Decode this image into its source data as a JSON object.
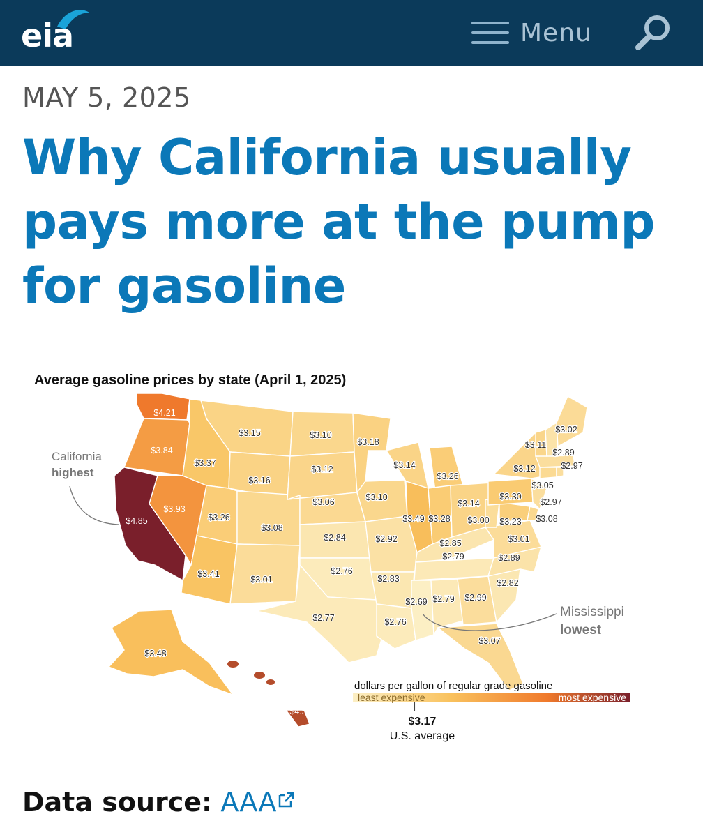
{
  "header": {
    "logo_text": "eia",
    "menu_label": "Menu",
    "search_icon": "search-icon",
    "menu_icon": "hamburger-icon"
  },
  "article": {
    "date": "MAY 5, 2025",
    "title": "Why California usually pays more at the pump for gasoline",
    "source_label": "Data source:",
    "source_link": "AAA",
    "external_icon": "external-link-icon"
  },
  "map": {
    "title": "Average gasoline prices by state (April 1, 2025)",
    "callout_high": {
      "line1": "California",
      "line2": "highest"
    },
    "callout_low": {
      "line1": "Mississippi",
      "line2": "lowest"
    },
    "legend": {
      "caption": "dollars per gallon of regular grade gasoline",
      "low_label": "least expensive",
      "high_label": "most expensive",
      "avg_value": "$3.17",
      "avg_label": "U.S. average",
      "min": 2.69,
      "max": 4.85,
      "us_average": 3.17
    },
    "colors": {
      "low": "#fcefc4",
      "mid": "#f9c25e",
      "high": "#f07a2c",
      "top": "#7a1f2b",
      "border": "#ffffff"
    }
  },
  "chart_data": {
    "type": "choropleth",
    "title": "Average gasoline prices by state (April 1, 2025)",
    "unit": "dollars per gallon of regular grade gasoline",
    "us_average": 3.17,
    "states": [
      {
        "state": "WA",
        "label": "$4.21",
        "value": 4.21
      },
      {
        "state": "OR",
        "label": "$3.84",
        "value": 3.84
      },
      {
        "state": "CA",
        "label": "$4.85",
        "value": 4.85
      },
      {
        "state": "NV",
        "label": "$3.93",
        "value": 3.93
      },
      {
        "state": "ID",
        "label": "$3.37",
        "value": 3.37
      },
      {
        "state": "MT",
        "label": "$3.15",
        "value": 3.15
      },
      {
        "state": "WY",
        "label": "$3.16",
        "value": 3.16
      },
      {
        "state": "UT",
        "label": "$3.26",
        "value": 3.26
      },
      {
        "state": "AZ",
        "label": "$3.41",
        "value": 3.41
      },
      {
        "state": "CO",
        "label": "$3.08",
        "value": 3.08
      },
      {
        "state": "NM",
        "label": "$3.01",
        "value": 3.01
      },
      {
        "state": "ND",
        "label": "$3.10",
        "value": 3.1
      },
      {
        "state": "SD",
        "label": "$3.12",
        "value": 3.12
      },
      {
        "state": "NE",
        "label": "$3.06",
        "value": 3.06
      },
      {
        "state": "KS",
        "label": "$2.84",
        "value": 2.84
      },
      {
        "state": "OK",
        "label": "$2.76",
        "value": 2.76
      },
      {
        "state": "TX",
        "label": "$2.77",
        "value": 2.77
      },
      {
        "state": "MN",
        "label": "$3.18",
        "value": 3.18
      },
      {
        "state": "IA",
        "label": "$3.10",
        "value": 3.1
      },
      {
        "state": "MO",
        "label": "$2.92",
        "value": 2.92
      },
      {
        "state": "AR",
        "label": "$2.83",
        "value": 2.83
      },
      {
        "state": "LA",
        "label": "$2.76",
        "value": 2.76
      },
      {
        "state": "WI",
        "label": "$3.14",
        "value": 3.14
      },
      {
        "state": "IL",
        "label": "$3.49",
        "value": 3.49
      },
      {
        "state": "MI",
        "label": "$3.26",
        "value": 3.26
      },
      {
        "state": "IN",
        "label": "$3.28",
        "value": 3.28
      },
      {
        "state": "OH",
        "label": "$3.14",
        "value": 3.14
      },
      {
        "state": "KY",
        "label": "$2.85",
        "value": 2.85
      },
      {
        "state": "TN",
        "label": "$2.79",
        "value": 2.79
      },
      {
        "state": "MS",
        "label": "$2.69",
        "value": 2.69
      },
      {
        "state": "AL",
        "label": "$2.79",
        "value": 2.79
      },
      {
        "state": "GA",
        "label": "$2.99",
        "value": 2.99
      },
      {
        "state": "FL",
        "label": "$3.07",
        "value": 3.07
      },
      {
        "state": "SC",
        "label": "$2.82",
        "value": 2.82
      },
      {
        "state": "NC",
        "label": "$2.89",
        "value": 2.89
      },
      {
        "state": "VA",
        "label": "$3.01",
        "value": 3.01
      },
      {
        "state": "WV",
        "label": "$3.00",
        "value": 3.0
      },
      {
        "state": "MD",
        "label": "$3.23",
        "value": 3.23
      },
      {
        "state": "DE",
        "label": "$3.08",
        "value": 3.08
      },
      {
        "state": "PA",
        "label": "$3.30",
        "value": 3.3
      },
      {
        "state": "NJ",
        "label": "$2.97",
        "value": 2.97
      },
      {
        "state": "NY",
        "label": "$3.12",
        "value": 3.12
      },
      {
        "state": "CT",
        "label": "$3.05",
        "value": 3.05
      },
      {
        "state": "RI",
        "label": "$2.97",
        "value": 2.97
      },
      {
        "state": "MA",
        "label": "$2.97",
        "value": 2.97
      },
      {
        "state": "VT",
        "label": "$3.11",
        "value": 3.11
      },
      {
        "state": "NH",
        "label": "$2.89",
        "value": 2.89
      },
      {
        "state": "ME",
        "label": "$3.02",
        "value": 3.02
      },
      {
        "state": "AK",
        "label": "$3.48",
        "value": 3.48
      },
      {
        "state": "HI",
        "label": "$4.53",
        "value": 4.53
      }
    ]
  }
}
